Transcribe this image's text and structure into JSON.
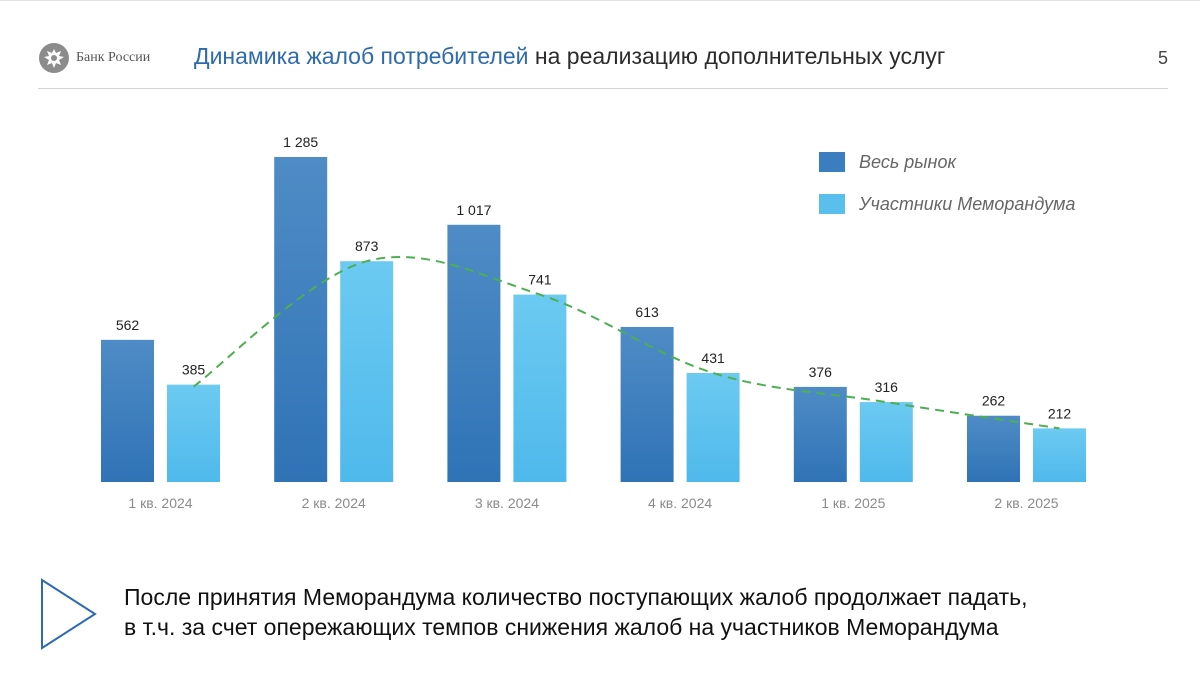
{
  "header": {
    "brand": "Банк России",
    "title_accent": "Динамика жалоб потребителей",
    "title_rest": " на реализацию дополнительных услуг",
    "page_number": "5"
  },
  "colors": {
    "series1": "#3a7ebf",
    "series2": "#5bbfee",
    "trend": "#4caf50",
    "accent": "#2e6aaf"
  },
  "chart_data": {
    "type": "bar",
    "title": "",
    "xlabel": "",
    "ylabel": "",
    "ylim": [
      0,
      1400
    ],
    "grid": false,
    "legend_position": "top-right",
    "categories": [
      "1 кв. 2024",
      "2 кв. 2024",
      "3 кв. 2024",
      "4 кв. 2024",
      "1 кв. 2025",
      "2 кв. 2025"
    ],
    "series": [
      {
        "name": "Весь рынок",
        "values": [
          562,
          1285,
          1017,
          613,
          376,
          262
        ],
        "labels": [
          "562",
          "1 285",
          "1 017",
          "613",
          "376",
          "262"
        ]
      },
      {
        "name": "Участники Меморандума",
        "values": [
          385,
          873,
          741,
          431,
          316,
          212
        ],
        "labels": [
          "385",
          "873",
          "741",
          "431",
          "316",
          "212"
        ]
      }
    ],
    "trendline": {
      "style": "dashed",
      "description": "smoothed trend"
    }
  },
  "callout": {
    "line1": "После принятия Меморандума количество поступающих жалоб продолжает падать,",
    "line2": "в т.ч. за счет опережающих темпов снижения жалоб на участников Меморандума"
  }
}
